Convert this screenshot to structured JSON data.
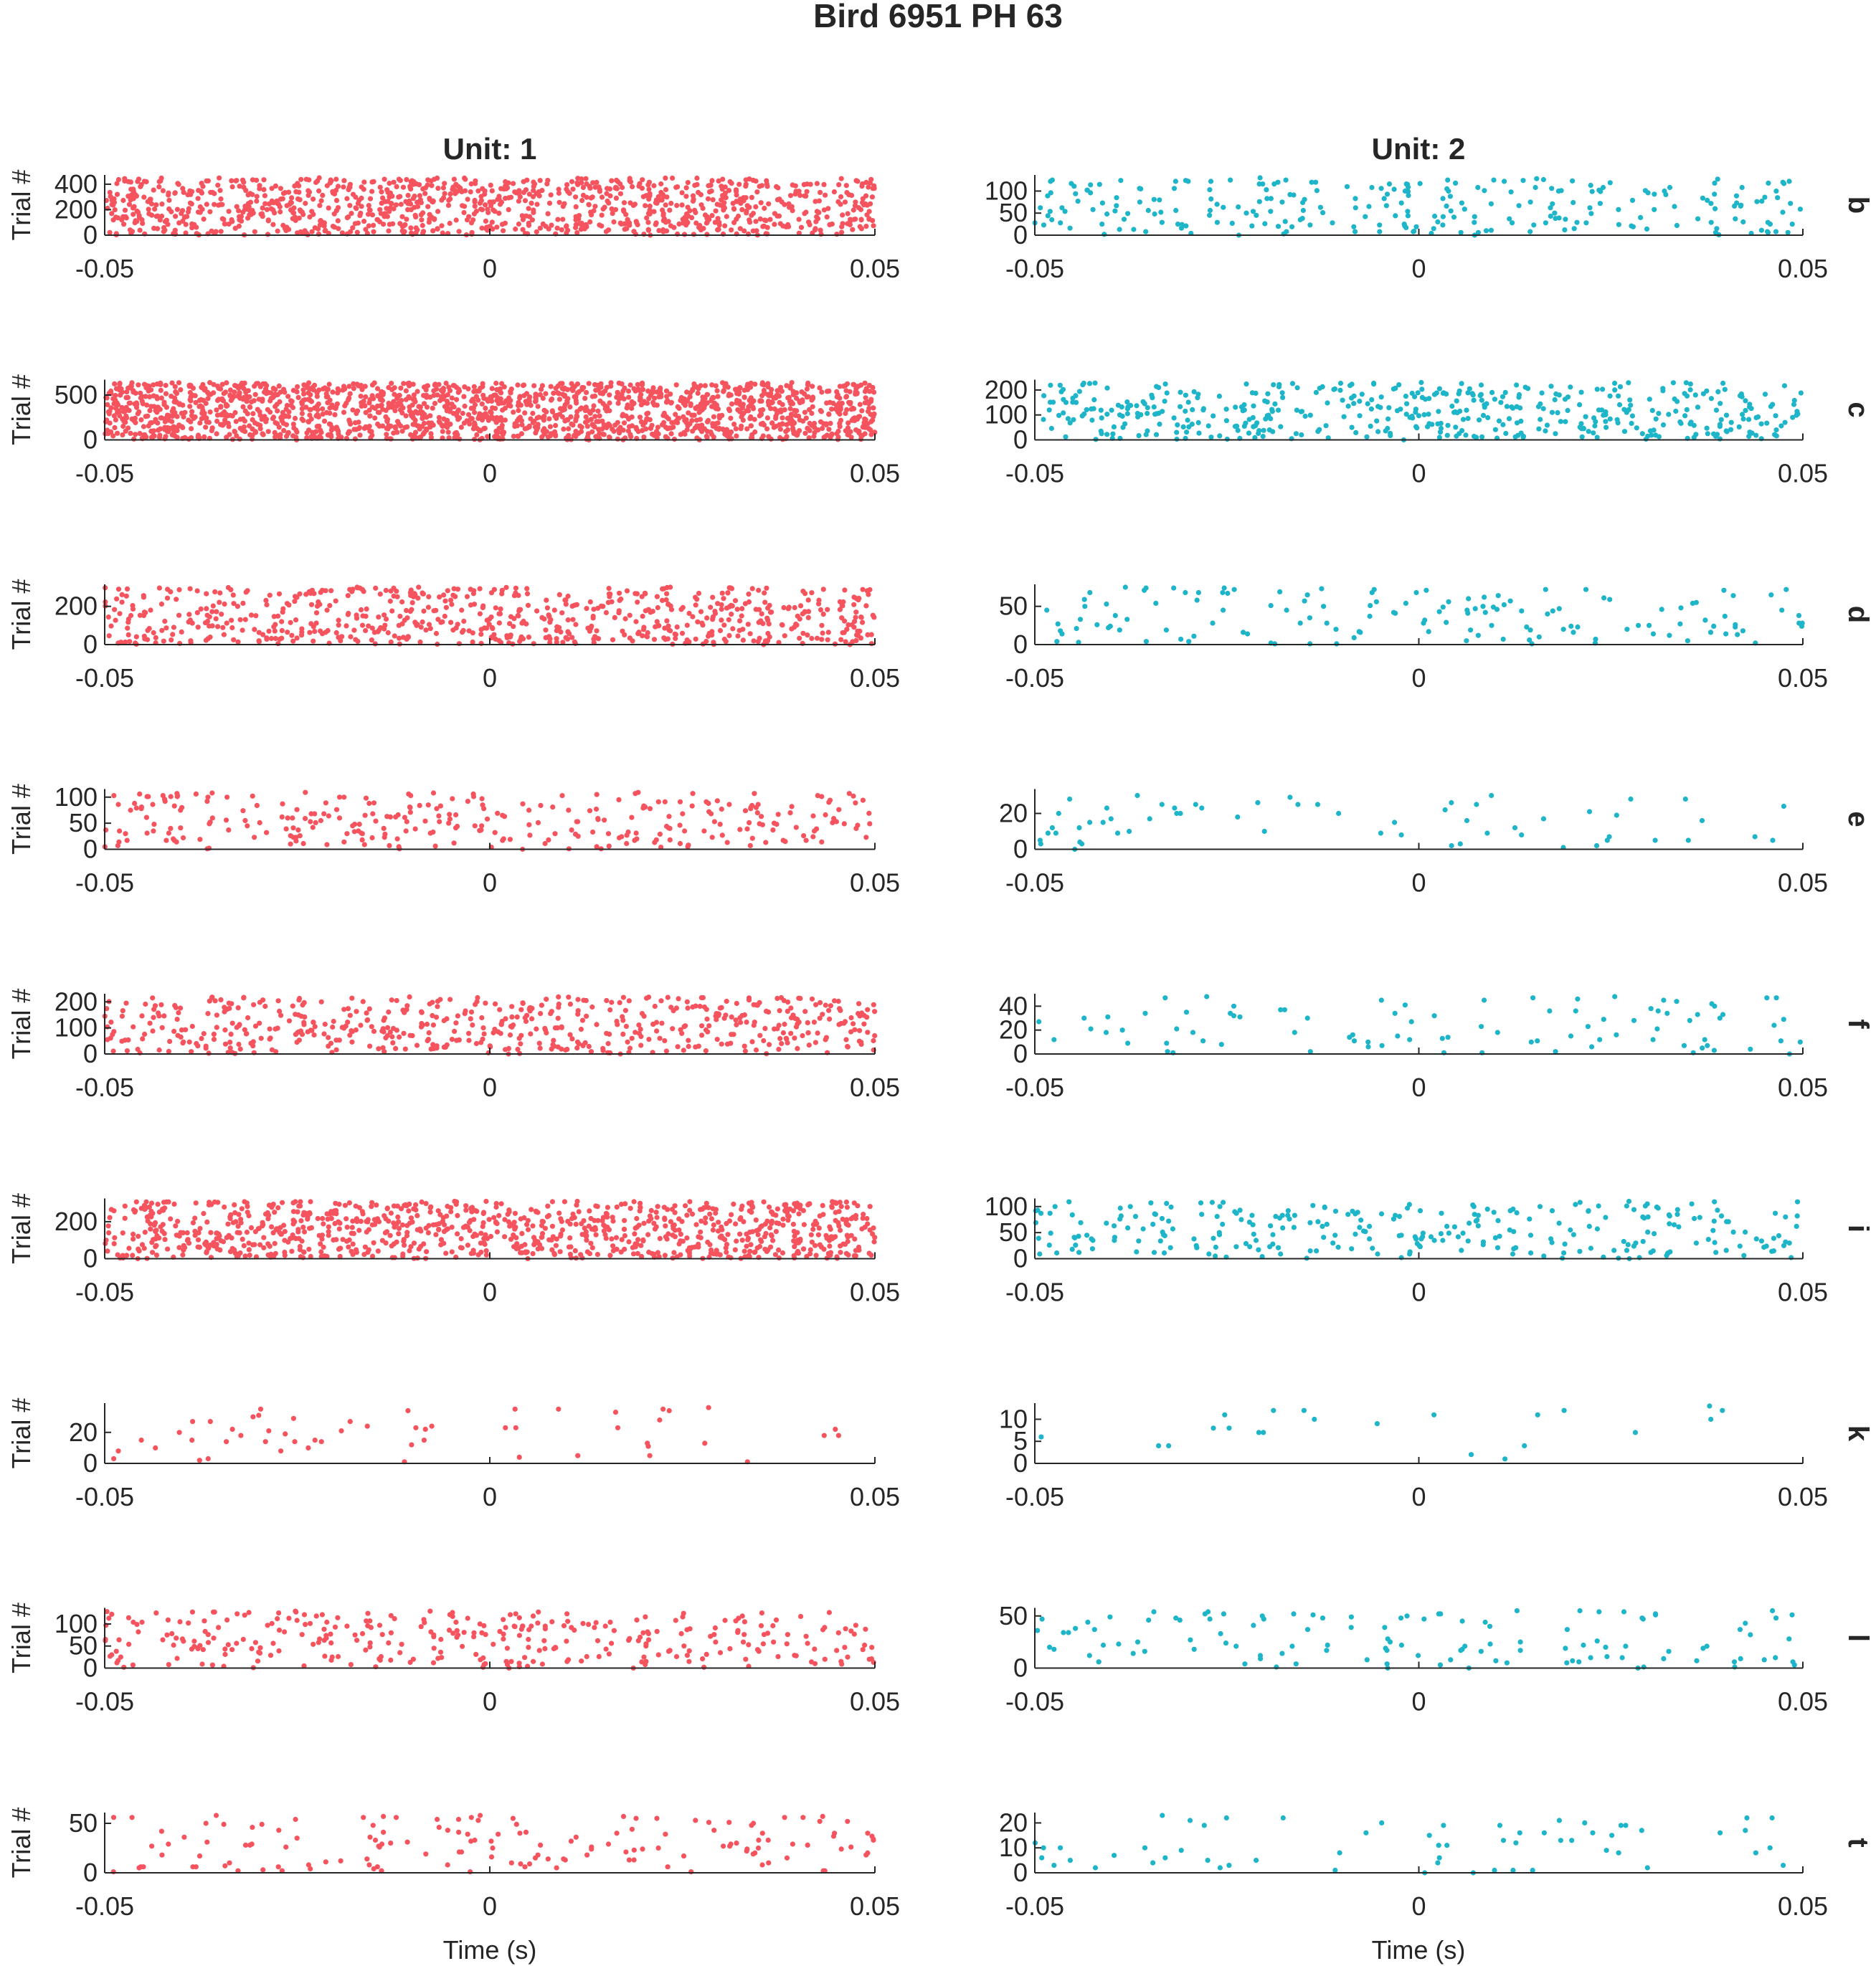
{
  "figure": {
    "title": "Bird 6951 PH 63",
    "columns": [
      "Unit: 1",
      "Unit: 2"
    ],
    "ylabel": "Trial #",
    "xlabel": "Time (s)"
  },
  "colors": {
    "unit1": "#f5545f",
    "unit2": "#1fb5c9",
    "axis": "#262626"
  },
  "chart_data": {
    "type": "scatter",
    "subtype": "raster",
    "x_range": [
      -0.05,
      0.05
    ],
    "x_ticks": [
      -0.05,
      0,
      0.05
    ],
    "rows": [
      {
        "label": "b",
        "unit1": {
          "ymax": 450,
          "yticks": [
            0,
            200,
            400
          ],
          "approx_spikes": 1100
        },
        "unit2": {
          "ymax": 130,
          "yticks": [
            0,
            50,
            100
          ],
          "approx_spikes": 260
        }
      },
      {
        "label": "c",
        "unit1": {
          "ymax": 640,
          "yticks": [
            0,
            500
          ],
          "approx_spikes": 1800
        },
        "unit2": {
          "ymax": 230,
          "yticks": [
            0,
            100,
            200
          ],
          "approx_spikes": 480
        }
      },
      {
        "label": "d",
        "unit1": {
          "ymax": 300,
          "yticks": [
            0,
            200
          ],
          "approx_spikes": 700
        },
        "unit2": {
          "ymax": 75,
          "yticks": [
            0,
            50
          ],
          "approx_spikes": 140
        }
      },
      {
        "label": "e",
        "unit1": {
          "ymax": 110,
          "yticks": [
            0,
            50,
            100
          ],
          "approx_spikes": 300
        },
        "unit2": {
          "ymax": 32,
          "yticks": [
            0,
            20
          ],
          "approx_spikes": 60
        }
      },
      {
        "label": "f",
        "unit1": {
          "ymax": 220,
          "yticks": [
            0,
            100,
            200
          ],
          "approx_spikes": 560
        },
        "unit2": {
          "ymax": 48,
          "yticks": [
            0,
            20,
            40
          ],
          "approx_spikes": 90
        }
      },
      {
        "label": "i",
        "unit1": {
          "ymax": 310,
          "yticks": [
            0,
            200
          ],
          "approx_spikes": 1000
        },
        "unit2": {
          "ymax": 110,
          "yticks": [
            0,
            50,
            100
          ],
          "approx_spikes": 280
        }
      },
      {
        "label": "k",
        "unit1": {
          "ymax": 37,
          "yticks": [
            0,
            20
          ],
          "approx_spikes": 55
        },
        "unit2": {
          "ymax": 13,
          "yticks": [
            0,
            5,
            10
          ],
          "approx_spikes": 22
        }
      },
      {
        "label": "l",
        "unit1": {
          "ymax": 130,
          "yticks": [
            0,
            50,
            100
          ],
          "approx_spikes": 330
        },
        "unit2": {
          "ymax": 55,
          "yticks": [
            0,
            50
          ],
          "approx_spikes": 120
        }
      },
      {
        "label": "t",
        "unit1": {
          "ymax": 58,
          "yticks": [
            0,
            50
          ],
          "approx_spikes": 150
        },
        "unit2": {
          "ymax": 23,
          "yticks": [
            0,
            10,
            20
          ],
          "approx_spikes": 60
        }
      }
    ]
  }
}
